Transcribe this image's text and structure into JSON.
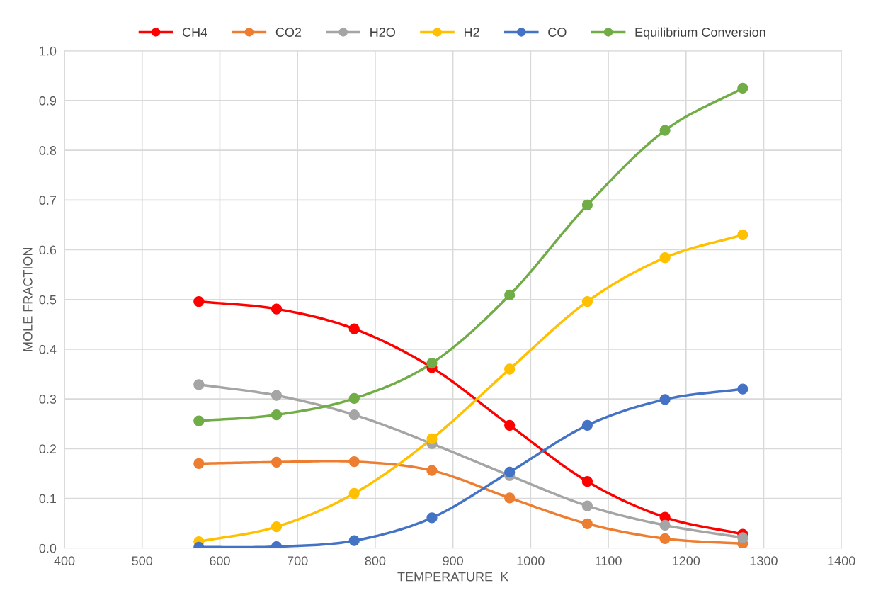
{
  "chart_data": {
    "type": "line",
    "xlabel": "TEMPERATURE  K",
    "ylabel": "MOLE FRACTION",
    "x": [
      573,
      673,
      773,
      873,
      973,
      1073,
      1173,
      1273
    ],
    "series": [
      {
        "name": "CH4",
        "color": "#ff0000",
        "values": [
          0.496,
          0.481,
          0.441,
          0.363,
          0.247,
          0.134,
          0.062,
          0.028
        ]
      },
      {
        "name": "CO2",
        "color": "#ed7d31",
        "values": [
          0.17,
          0.173,
          0.174,
          0.156,
          0.101,
          0.049,
          0.019,
          0.009
        ]
      },
      {
        "name": "H2O",
        "color": "#a5a5a5",
        "values": [
          0.329,
          0.307,
          0.268,
          0.21,
          0.146,
          0.085,
          0.046,
          0.021
        ]
      },
      {
        "name": "H2",
        "color": "#ffc000",
        "values": [
          0.013,
          0.043,
          0.11,
          0.22,
          0.36,
          0.496,
          0.584,
          0.63
        ]
      },
      {
        "name": "CO",
        "color": "#4472c4",
        "values": [
          0.002,
          0.003,
          0.015,
          0.061,
          0.153,
          0.247,
          0.299,
          0.32
        ]
      },
      {
        "name": "Equilibrium Conversion",
        "color": "#70ad47",
        "values": [
          0.256,
          0.268,
          0.301,
          0.372,
          0.509,
          0.69,
          0.84,
          0.925
        ]
      }
    ],
    "xlim": [
      400,
      1400
    ],
    "xticks": [
      400,
      500,
      600,
      700,
      800,
      900,
      1000,
      1100,
      1200,
      1300,
      1400
    ],
    "ylim": [
      0,
      1.0
    ],
    "yticks": [
      {
        "value": 0,
        "label": "0.0"
      },
      {
        "value": 0.1,
        "label": "0.1"
      },
      {
        "value": 0.2,
        "label": "0.2"
      },
      {
        "value": 0.3,
        "label": "0.3"
      },
      {
        "value": 0.4,
        "label": "0.4"
      },
      {
        "value": 0.5,
        "label": "0.5"
      },
      {
        "value": 0.6,
        "label": "0.6"
      },
      {
        "value": 0.7,
        "label": "0.7"
      },
      {
        "value": 0.8,
        "label": "0.8"
      },
      {
        "value": 0.9,
        "label": "0.9"
      },
      {
        "value": 1.0,
        "label": "1.0"
      }
    ],
    "grid": true,
    "legend": "top",
    "marker": "circle",
    "line_style": "solid"
  }
}
